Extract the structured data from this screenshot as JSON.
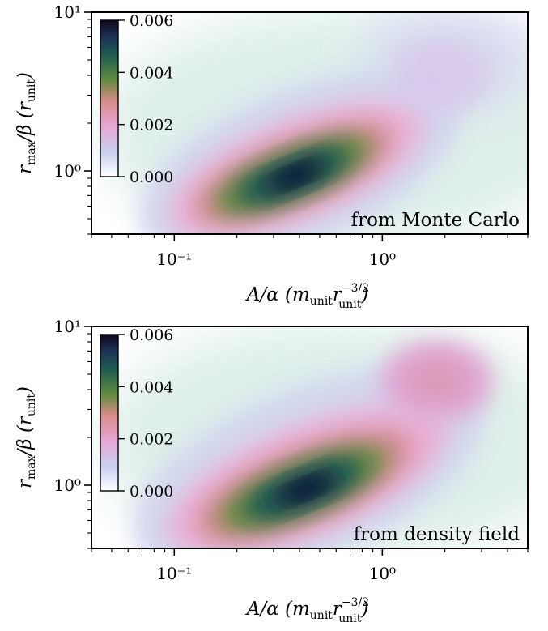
{
  "chart_data": [
    {
      "type": "heatmap",
      "id": "top",
      "annotation": "from Monte Carlo",
      "x_scale": "log",
      "y_scale": "log",
      "xlim": [
        0.04,
        5.0
      ],
      "ylim": [
        0.4,
        10
      ],
      "x_ticks": [
        0.1,
        1.0
      ],
      "x_tick_labels": [
        "10⁻¹",
        "10⁰"
      ],
      "y_ticks": [
        1,
        10
      ],
      "y_tick_labels": [
        "10⁰",
        "10¹"
      ],
      "xlabel": "A/α (m_unit r_unit^-3/2)",
      "ylabel": "r_max/β (r_unit)",
      "colorbar": {
        "range": [
          0.0,
          0.006
        ],
        "ticks": [
          0.0,
          0.002,
          0.004,
          0.006
        ],
        "tick_labels": [
          "0.000",
          "0.002",
          "0.004",
          "0.006"
        ],
        "colormap": "cubehelix_r",
        "placement": "upper-left (inset)"
      },
      "density_peak": {
        "x": 0.4,
        "y": 0.95,
        "value": 0.006
      },
      "secondary_lobe": {
        "x": 2.2,
        "y": 5.0,
        "strength": "weak"
      }
    },
    {
      "type": "heatmap",
      "id": "bottom",
      "annotation": "from density field",
      "x_scale": "log",
      "y_scale": "log",
      "xlim": [
        0.04,
        5.0
      ],
      "ylim": [
        0.4,
        10
      ],
      "x_ticks": [
        0.1,
        1.0
      ],
      "x_tick_labels": [
        "10⁻¹",
        "10⁰"
      ],
      "y_ticks": [
        1,
        10
      ],
      "y_tick_labels": [
        "10⁰",
        "10¹"
      ],
      "xlabel": "A/α (m_unit r_unit^-3/2)",
      "ylabel": "r_max/β (r_unit)",
      "colorbar": {
        "range": [
          0.0,
          0.006
        ],
        "ticks": [
          0.0,
          0.002,
          0.004,
          0.006
        ],
        "tick_labels": [
          "0.000",
          "0.002",
          "0.004",
          "0.006"
        ],
        "colormap": "cubehelix_r",
        "placement": "upper-left (inset)"
      },
      "density_peak": {
        "x": 0.45,
        "y": 1.0,
        "value": 0.006
      },
      "secondary_lobe": {
        "x": 2.2,
        "y": 5.5,
        "strength": "moderate"
      }
    }
  ],
  "labels": {
    "xlabel_main": "A/α (m",
    "xlabel_sub1": "unit",
    "xlabel_r": "r",
    "xlabel_sup": "−3/2",
    "xlabel_sub2": "unit",
    "xlabel_close": ")",
    "ylabel_r": "r",
    "ylabel_sub": "max",
    "ylabel_mid": "/β (r",
    "ylabel_sub2": "unit",
    "ylabel_close": ")"
  }
}
